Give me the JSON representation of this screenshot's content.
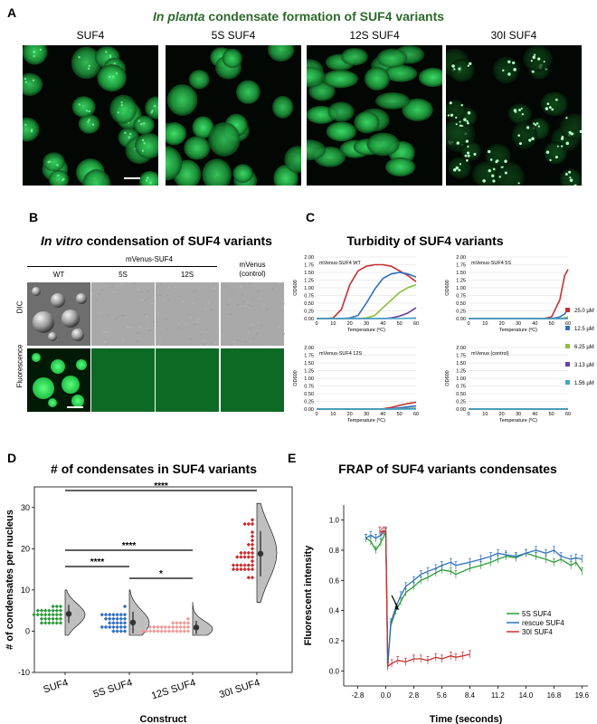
{
  "panelA": {
    "letter": "A",
    "title_italic": "In planta",
    "title_rest": " condensate formation of SUF4 variants",
    "columns": [
      "SUF4",
      "5S SUF4",
      "12S SUF4",
      "30I SUF4"
    ]
  },
  "panelB": {
    "letter": "B",
    "title_italic": "In vitro",
    "title_rest": " condensation of SUF4 variants",
    "group_label": "mVenus-SUF4",
    "columns": [
      "WT",
      "5S",
      "12S",
      "mVenus\n(control)"
    ],
    "rows": [
      "DIC",
      "Fluorescence"
    ]
  },
  "panelC": {
    "letter": "C",
    "title": "Turbidity of SUF4 variants",
    "ylabel": "OD600",
    "xlabel": "Temperature (ºC)",
    "legend": [
      "25.0 µM",
      "12.5 µM",
      "6.25 µM",
      "3.13 µM",
      "1.56 µM"
    ],
    "colors": [
      "#c8302e",
      "#2f6fbf",
      "#8cbf3f",
      "#6a3fa0",
      "#3fa8c8"
    ],
    "yticks": [
      "0.00",
      "0.25",
      "0.50",
      "0.75",
      "1.00",
      "1.25",
      "1.50",
      "1.75",
      "2.00"
    ],
    "xticks": [
      "0",
      "10",
      "20",
      "30",
      "40",
      "50",
      "60"
    ]
  },
  "chart_data": [
    {
      "type": "line",
      "title": "mVenus-SUF4 WT",
      "xlabel": "Temperature (ºC)",
      "ylabel": "OD600",
      "xlim": [
        0,
        60
      ],
      "ylim": [
        0,
        2.0
      ],
      "x": [
        0,
        5,
        10,
        15,
        20,
        25,
        30,
        35,
        40,
        45,
        50,
        55,
        60
      ],
      "series": [
        {
          "name": "25.0 µM",
          "values": [
            0,
            0,
            0.02,
            0.3,
            1.1,
            1.55,
            1.7,
            1.75,
            1.75,
            1.7,
            1.55,
            1.4,
            1.2
          ]
        },
        {
          "name": "12.5 µM",
          "values": [
            0,
            0,
            0,
            0,
            0.02,
            0.1,
            0.5,
            0.95,
            1.3,
            1.45,
            1.5,
            1.45,
            1.35
          ]
        },
        {
          "name": "6.25 µM",
          "values": [
            0,
            0,
            0,
            0,
            0,
            0,
            0.02,
            0.1,
            0.35,
            0.6,
            0.85,
            1.0,
            1.1
          ]
        },
        {
          "name": "3.13 µM",
          "values": [
            0,
            0,
            0,
            0,
            0,
            0,
            0,
            0,
            0,
            0.02,
            0.08,
            0.18,
            0.35
          ]
        },
        {
          "name": "1.56 µM",
          "values": [
            0,
            0,
            0,
            0,
            0,
            0,
            0,
            0,
            0,
            0,
            0,
            0.01,
            0.02
          ]
        }
      ]
    },
    {
      "type": "line",
      "title": "mVenus-SUF4 5S",
      "xlabel": "Temperature (ºC)",
      "ylabel": "OD600",
      "xlim": [
        0,
        60
      ],
      "ylim": [
        0,
        2.0
      ],
      "x": [
        0,
        5,
        10,
        15,
        20,
        25,
        30,
        35,
        40,
        45,
        50,
        55,
        58,
        60
      ],
      "series": [
        {
          "name": "25.0 µM",
          "values": [
            0,
            0,
            0,
            0,
            0,
            0,
            0,
            0,
            0,
            0,
            0.05,
            0.6,
            1.4,
            1.6
          ]
        },
        {
          "name": "12.5 µM",
          "values": [
            0,
            0,
            0,
            0,
            0,
            0,
            0,
            0,
            0,
            0,
            0,
            0.05,
            0.15,
            0.3
          ]
        },
        {
          "name": "6.25 µM",
          "values": [
            0,
            0,
            0,
            0,
            0,
            0,
            0,
            0,
            0,
            0,
            0,
            0,
            0.02,
            0.05
          ]
        },
        {
          "name": "3.13 µM",
          "values": [
            0,
            0,
            0,
            0,
            0,
            0,
            0,
            0,
            0,
            0,
            0,
            0,
            0,
            0.01
          ]
        },
        {
          "name": "1.56 µM",
          "values": [
            0,
            0,
            0,
            0,
            0,
            0,
            0,
            0,
            0,
            0,
            0,
            0,
            0,
            0
          ]
        }
      ]
    },
    {
      "type": "line",
      "title": "mVenus-SUF4 12S",
      "xlabel": "Temperature (ºC)",
      "ylabel": "OD600",
      "xlim": [
        0,
        60
      ],
      "ylim": [
        0,
        2.0
      ],
      "x": [
        0,
        10,
        20,
        30,
        40,
        45,
        50,
        55,
        60
      ],
      "series": [
        {
          "name": "25.0 µM",
          "values": [
            0,
            0,
            0,
            0,
            0.01,
            0.05,
            0.12,
            0.18,
            0.22
          ]
        },
        {
          "name": "12.5 µM",
          "values": [
            0,
            0,
            0,
            0,
            0,
            0.01,
            0.04,
            0.07,
            0.1
          ]
        },
        {
          "name": "6.25 µM",
          "values": [
            0,
            0,
            0,
            0,
            0,
            0,
            0.01,
            0.02,
            0.03
          ]
        },
        {
          "name": "3.13 µM",
          "values": [
            0,
            0,
            0,
            0,
            0,
            0,
            0,
            0.01,
            0.01
          ]
        },
        {
          "name": "1.56 µM",
          "values": [
            0,
            0,
            0,
            0,
            0,
            0,
            0,
            0,
            0
          ]
        }
      ]
    },
    {
      "type": "line",
      "title": "mVenus (control)",
      "xlabel": "Temperature (ºC)",
      "ylabel": "OD600",
      "xlim": [
        0,
        60
      ],
      "ylim": [
        0,
        2.0
      ],
      "x": [
        0,
        10,
        20,
        30,
        40,
        50,
        60
      ],
      "series": [
        {
          "name": "25.0 µM",
          "values": [
            0,
            0,
            0,
            0,
            0,
            0,
            0.01
          ]
        },
        {
          "name": "12.5 µM",
          "values": [
            0,
            0,
            0,
            0,
            0,
            0,
            0
          ]
        },
        {
          "name": "6.25 µM",
          "values": [
            0,
            0,
            0,
            0,
            0,
            0,
            0
          ]
        },
        {
          "name": "3.13 µM",
          "values": [
            0,
            0,
            0,
            0,
            0,
            0,
            0
          ]
        },
        {
          "name": "1.56 µM",
          "values": [
            0,
            0,
            0,
            0,
            0,
            0,
            0
          ]
        }
      ]
    },
    {
      "type": "scatter",
      "title": "# of condensates in SUF4 variants",
      "ylabel": "# of condensates per nucleus",
      "xlabel": "Construct",
      "ylim": [
        -10,
        35
      ],
      "yticks": [
        "-10",
        "0",
        "10",
        "20",
        "30"
      ],
      "categories": [
        "SUF4",
        "5S SUF4",
        "12S SUF4",
        "30I SUF4"
      ],
      "colors": [
        "#2e9a3a",
        "#2f6fbf",
        "#f09a9a",
        "#c8302e"
      ],
      "means": [
        4.2,
        2.1,
        0.9,
        18.8
      ],
      "sd": [
        2.2,
        2.6,
        1.6,
        5.5
      ],
      "significance": [
        {
          "from": "SUF4",
          "to": "30I SUF4",
          "label": "****"
        },
        {
          "from": "SUF4",
          "to": "12S SUF4",
          "label": "****"
        },
        {
          "from": "SUF4",
          "to": "5S SUF4",
          "label": "****"
        },
        {
          "from": "5S SUF4",
          "to": "12S SUF4",
          "label": "*"
        }
      ]
    },
    {
      "type": "line",
      "title": "FRAP of SUF4 variants condensates",
      "ylabel": "Fluorescent intensity",
      "xlabel": "Time (seconds)",
      "xlim": [
        -4.2,
        20.2
      ],
      "ylim": [
        -0.1,
        1.1
      ],
      "xticks": [
        "-2.8",
        "0.0",
        "2.8",
        "5.6",
        "8.4",
        "11.2",
        "14.0",
        "16.8",
        "19.6"
      ],
      "yticks": [
        "0.0",
        "0.2",
        "0.4",
        "0.6",
        "0.8",
        "1.0"
      ],
      "series": [
        {
          "name": "5S SUF4",
          "color": "#2e9a3a",
          "x": [
            -2.0,
            -1.5,
            -1.0,
            -0.5,
            0.0,
            0.2,
            0.5,
            1.0,
            1.5,
            2.0,
            2.8,
            3.5,
            4.2,
            5.0,
            5.6,
            6.5,
            7.0,
            8.4,
            9.5,
            10.5,
            11.2,
            12.0,
            13.0,
            14.0,
            15.0,
            16.0,
            16.8,
            17.5,
            18.5,
            19.0,
            19.6
          ],
          "values": [
            0.88,
            0.86,
            0.8,
            0.85,
            0.92,
            0.05,
            0.3,
            0.4,
            0.46,
            0.52,
            0.56,
            0.6,
            0.62,
            0.65,
            0.67,
            0.66,
            0.64,
            0.68,
            0.7,
            0.72,
            0.74,
            0.76,
            0.75,
            0.78,
            0.76,
            0.74,
            0.72,
            0.74,
            0.7,
            0.72,
            0.66
          ]
        },
        {
          "name": "rescue SUF4",
          "color": "#2f6fbf",
          "x": [
            -2.0,
            -1.5,
            -1.0,
            -0.5,
            0.0,
            0.2,
            0.5,
            1.0,
            1.5,
            2.0,
            2.8,
            3.5,
            4.2,
            5.0,
            5.6,
            6.5,
            7.0,
            8.4,
            9.5,
            10.5,
            11.2,
            12.0,
            13.0,
            14.0,
            15.0,
            16.0,
            16.8,
            17.5,
            18.5,
            19.0,
            19.6
          ],
          "values": [
            0.88,
            0.9,
            0.88,
            0.9,
            0.93,
            0.03,
            0.32,
            0.42,
            0.5,
            0.56,
            0.6,
            0.64,
            0.66,
            0.68,
            0.7,
            0.72,
            0.7,
            0.72,
            0.74,
            0.76,
            0.78,
            0.77,
            0.76,
            0.78,
            0.8,
            0.78,
            0.8,
            0.76,
            0.74,
            0.75,
            0.74
          ]
        },
        {
          "name": "30I SUF4",
          "color": "#c8302e",
          "x": [
            -0.6,
            -0.4,
            -0.2,
            0.0,
            0.2,
            0.6,
            1.2,
            2.0,
            2.8,
            3.5,
            4.2,
            5.0,
            5.6,
            6.5,
            7.0,
            7.7,
            8.4
          ],
          "values": [
            0.93,
            0.92,
            0.93,
            0.92,
            0.03,
            0.05,
            0.07,
            0.06,
            0.08,
            0.08,
            0.07,
            0.09,
            0.08,
            0.1,
            0.09,
            0.1,
            0.11
          ]
        }
      ]
    }
  ],
  "panelD": {
    "letter": "D",
    "title": "# of condensates in SUF4 variants",
    "ylabel": "# of condensates per nucleus",
    "xlabel": "Construct"
  },
  "panelE": {
    "letter": "E",
    "title": "FRAP of SUF4 variants condensates",
    "ylabel": "Fluorescent intensity",
    "xlabel": "Time (seconds)"
  },
  "colors": {
    "green": "#2e9a3a",
    "blue": "#2f6fbf",
    "pink": "#f09a9a",
    "red": "#c8302e",
    "fluor": "#2ecc55"
  }
}
